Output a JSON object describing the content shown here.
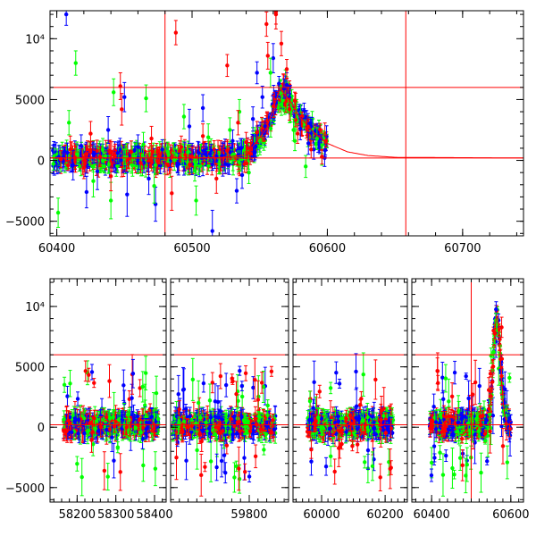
{
  "chart_data": [
    {
      "type": "scatter",
      "title": "",
      "xlabel": "",
      "ylabel": "",
      "xlim": [
        60395,
        60745
      ],
      "ylim": [
        -6200,
        12300
      ],
      "x_ticks": [
        {
          "value": 60400,
          "label": "60400"
        },
        {
          "value": 60500,
          "label": "60500"
        },
        {
          "value": 60600,
          "label": "60600"
        },
        {
          "value": 60700,
          "label": "60700"
        }
      ],
      "y_ticks": [
        {
          "value": -5000,
          "label": "−5000"
        },
        {
          "value": 0,
          "label": "0"
        },
        {
          "value": 5000,
          "label": "5000"
        },
        {
          "value": 10000,
          "label": "10⁴"
        }
      ],
      "reference_lines": {
        "horizontal": [
          200,
          6000
        ],
        "vertical": [
          60480,
          60658
        ],
        "color": "#ff0000"
      },
      "model_curve": {
        "color": "#ff0000",
        "x": [
          60395,
          60520,
          60540,
          60555,
          60565,
          60573,
          60580,
          60590,
          60600,
          60615,
          60630,
          60650,
          60745
        ],
        "y": [
          200,
          220,
          450,
          2600,
          5900,
          4800,
          3500,
          2300,
          1400,
          700,
          400,
          250,
          200
        ]
      },
      "series": [
        {
          "color": "#0000ff",
          "x": [
            60405,
            60412,
            60418,
            60430,
            60438,
            60445,
            60452,
            60460,
            60468,
            60478,
            60490,
            60498,
            60505,
            60515,
            60522,
            60530,
            60537,
            60545,
            60552,
            60560,
            60570,
            60580,
            60590,
            60598,
            60407,
            60422,
            60450,
            60473,
            60508,
            60533,
            60548,
            60568,
            60586
          ],
          "y": [
            300,
            -400,
            1200,
            -900,
            2500,
            600,
            -2800,
            1100,
            -1500,
            900,
            -300,
            2800,
            600,
            -5800,
            400,
            1600,
            -1200,
            3400,
            5200,
            8400,
            6200,
            2600,
            900,
            200,
            12000,
            -2600,
            5200,
            -3600,
            4300,
            -2500,
            7200,
            5900,
            1400
          ],
          "err": [
            800,
            1200,
            900,
            1500,
            1100,
            900,
            1800,
            1000,
            1300,
            800,
            900,
            1400,
            900,
            1700,
            800,
            900,
            1100,
            1000,
            900,
            1200,
            1000,
            900,
            800,
            700,
            900,
            1300,
            1200,
            1400,
            1100,
            1000,
            900,
            800,
            900
          ]
        },
        {
          "color": "#00ff00",
          "x": [
            60401,
            60409,
            60415,
            60427,
            60434,
            60442,
            60456,
            60464,
            60472,
            60482,
            60494,
            60502,
            60512,
            60520,
            60528,
            60542,
            60550,
            60558,
            60566,
            60576,
            60584,
            60596,
            60414,
            60440,
            60466,
            60503,
            60535,
            60575
          ],
          "y": [
            -4300,
            3100,
            500,
            -1700,
            900,
            5600,
            -400,
            1300,
            -2100,
            700,
            3600,
            -800,
            1900,
            -300,
            2500,
            -1000,
            1700,
            7200,
            4600,
            1600,
            -500,
            300,
            8000,
            -3300,
            5100,
            -3300,
            4000,
            2500
          ],
          "err": [
            1200,
            1000,
            800,
            1300,
            900,
            1100,
            900,
            1000,
            1400,
            800,
            1000,
            900,
            1100,
            800,
            1000,
            900,
            1000,
            1200,
            900,
            800,
            900,
            700,
            1000,
            1500,
            1100,
            1200,
            1000,
            900
          ]
        },
        {
          "color": "#ff0000",
          "x": [
            60403,
            60410,
            60420,
            60425,
            60432,
            60440,
            60448,
            60455,
            60462,
            60470,
            60476,
            60485,
            60492,
            60500,
            60508,
            60518,
            60526,
            60534,
            60540,
            60548,
            60556,
            60562,
            60566,
            60572,
            60578,
            60588,
            60596,
            60447,
            60488,
            60526,
            60555,
            60562,
            60570
          ],
          "y": [
            100,
            900,
            -600,
            2200,
            300,
            -1300,
            4200,
            700,
            -200,
            1800,
            400,
            -2700,
            1100,
            300,
            2000,
            -1500,
            800,
            3100,
            1500,
            2300,
            8600,
            12000,
            9600,
            4200,
            2200,
            900,
            300,
            6100,
            10500,
            7800,
            11200,
            12200,
            7500
          ],
          "err": [
            700,
            1100,
            900,
            1000,
            800,
            1200,
            1300,
            900,
            800,
            1000,
            700,
            1400,
            900,
            800,
            1000,
            1200,
            900,
            1000,
            800,
            900,
            1100,
            1200,
            1000,
            900,
            800,
            700,
            600,
            1100,
            1000,
            900,
            1000,
            1000,
            800
          ]
        }
      ]
    },
    {
      "type": "scatter",
      "title": "",
      "xlabel": "",
      "ylabel": "",
      "x_axis_note": "broken x axis with four segments",
      "ylim": [
        -6200,
        12300
      ],
      "segments": [
        {
          "xlim": [
            58130,
            58430
          ]
        },
        {
          "xlim": [
            59620,
            59890
          ]
        },
        {
          "xlim": [
            59910,
            60270
          ]
        },
        {
          "xlim": [
            60350,
            60632
          ]
        }
      ],
      "x_ticks": [
        {
          "segment": 0,
          "value": 58200,
          "label": "58200"
        },
        {
          "segment": 0,
          "value": 58300,
          "label": "58300"
        },
        {
          "segment": 0,
          "value": 58400,
          "label": "58400"
        },
        {
          "segment": 1,
          "value": 59800,
          "label": "59800"
        },
        {
          "segment": 2,
          "value": 60000,
          "label": "60000"
        },
        {
          "segment": 2,
          "value": 60200,
          "label": "60200"
        },
        {
          "segment": 3,
          "value": 60400,
          "label": "60400"
        },
        {
          "segment": 3,
          "value": 60600,
          "label": "60600"
        }
      ],
      "y_ticks": [
        {
          "value": -5000,
          "label": "−5000"
        },
        {
          "value": 0,
          "label": "0"
        },
        {
          "value": 5000,
          "label": "5000"
        },
        {
          "value": 10000,
          "label": "10⁴"
        }
      ],
      "reference_lines": {
        "horizontal": [
          200,
          6000
        ],
        "vertical": [
          60500
        ],
        "color": "#ff0000"
      },
      "seasons": [
        {
          "segment": 0,
          "start": 58165,
          "end": 58410,
          "peak_x": null
        },
        {
          "segment": 1,
          "start": 59625,
          "end": 59860,
          "peak_x": null
        },
        {
          "segment": 2,
          "start": 59955,
          "end": 60225,
          "peak_x": null
        },
        {
          "segment": 3,
          "start": 60395,
          "end": 60600,
          "peak_x": 60565
        }
      ]
    }
  ]
}
